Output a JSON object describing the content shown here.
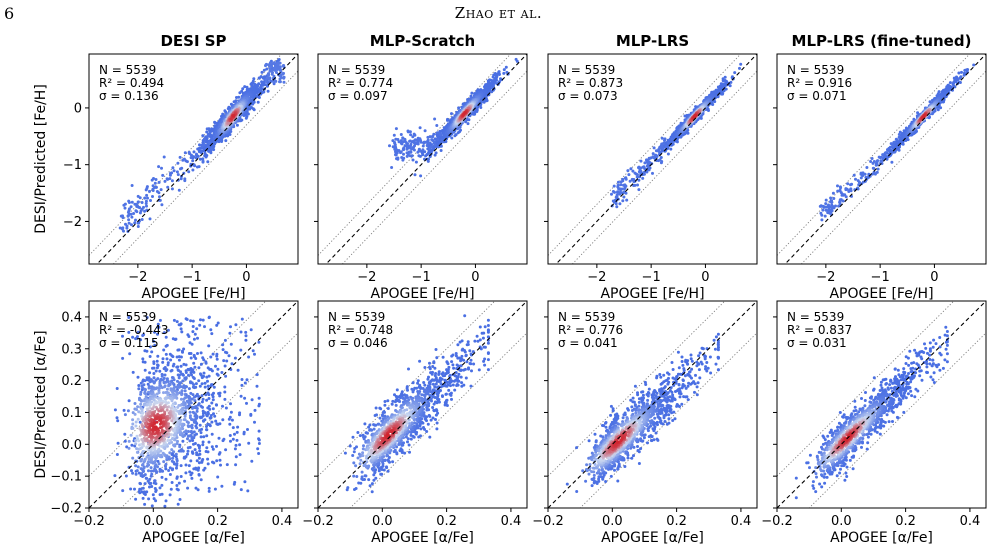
{
  "page": {
    "page_number": "6",
    "running_head": "Zhao et al."
  },
  "chart_data": [
    {
      "type": "scatter",
      "title": "DESI SP",
      "xlabel": "APOGEE [Fe/H]",
      "ylabel": "DESI/Predicted [Fe/H]",
      "xlim": [
        -2.9,
        0.95
      ],
      "ylim": [
        -2.75,
        0.95
      ],
      "xticks": [
        -2,
        -1,
        0
      ],
      "yticks": [
        -2,
        -1,
        0
      ],
      "stats": [
        "N = 5539",
        "R² = 0.494",
        "σ = 0.136"
      ],
      "reference_lines": {
        "one_to_one": true,
        "offset": 0.3
      },
      "points": {
        "center": [
          -0.25,
          -0.15
        ],
        "spread_major": 0.32,
        "spread_minor": 0.14,
        "tail_to": [
          -2.3,
          -2.0
        ],
        "plume": [
          [
            0.5,
            0.5
          ],
          [
            0.7,
            0.75
          ],
          [
            0.6,
            0.6
          ]
        ]
      }
    },
    {
      "type": "scatter",
      "title": "MLP-Scratch",
      "xlabel": "APOGEE [Fe/H]",
      "ylabel": "",
      "xlim": [
        -2.9,
        0.95
      ],
      "ylim": [
        -2.75,
        0.95
      ],
      "xticks": [
        -2,
        -1,
        0
      ],
      "yticks": [
        -2,
        -1,
        0
      ],
      "stats": [
        "N = 5539",
        "R² = 0.774",
        "σ = 0.097"
      ],
      "reference_lines": {
        "one_to_one": true,
        "offset": 0.3
      },
      "points": {
        "center": [
          -0.2,
          -0.1
        ],
        "spread_major": 0.3,
        "spread_minor": 0.1,
        "tail_to": [
          -1.5,
          -0.7
        ]
      }
    },
    {
      "type": "scatter",
      "title": "MLP-LRS",
      "xlabel": "APOGEE [Fe/H]",
      "ylabel": "",
      "xlim": [
        -2.9,
        0.95
      ],
      "ylim": [
        -2.75,
        0.95
      ],
      "xticks": [
        -2,
        -1,
        0
      ],
      "yticks": [
        -2,
        -1,
        0
      ],
      "stats": [
        "N = 5539",
        "R² = 0.873",
        "σ = 0.073"
      ],
      "reference_lines": {
        "one_to_one": true,
        "offset": 0.3
      },
      "points": {
        "center": [
          -0.2,
          -0.15
        ],
        "spread_major": 0.3,
        "spread_minor": 0.07,
        "tail_to": [
          -1.7,
          -1.6
        ]
      }
    },
    {
      "type": "scatter",
      "title": "MLP-LRS (fine-tuned)",
      "xlabel": "APOGEE [Fe/H]",
      "ylabel": "",
      "xlim": [
        -2.9,
        0.95
      ],
      "ylim": [
        -2.75,
        0.95
      ],
      "xticks": [
        -2,
        -1,
        0
      ],
      "yticks": [
        -2,
        -1,
        0
      ],
      "stats": [
        "N = 5539",
        "R² = 0.916",
        "σ = 0.071"
      ],
      "reference_lines": {
        "one_to_one": true,
        "offset": 0.3
      },
      "points": {
        "center": [
          -0.2,
          -0.15
        ],
        "spread_major": 0.3,
        "spread_minor": 0.065,
        "tail_to": [
          -2.1,
          -1.9
        ]
      }
    },
    {
      "type": "scatter",
      "title": "",
      "xlabel": "APOGEE [α/Fe]",
      "ylabel": "DESI/Predicted [α/Fe]",
      "xlim": [
        -0.2,
        0.45
      ],
      "ylim": [
        -0.2,
        0.45
      ],
      "xticks": [
        -0.2,
        0.0,
        0.2,
        0.4
      ],
      "yticks": [
        -0.2,
        -0.1,
        0.0,
        0.1,
        0.2,
        0.3,
        0.4
      ],
      "stats": [
        "N = 5539",
        "R² = -0.443",
        "σ = 0.115"
      ],
      "reference_lines": {
        "one_to_one": true,
        "offset": 0.1
      },
      "points": {
        "center": [
          0.01,
          0.06
        ],
        "spread_x": 0.07,
        "spread_y": 0.1,
        "slope": 0.35
      }
    },
    {
      "type": "scatter",
      "title": "",
      "xlabel": "APOGEE [α/Fe]",
      "ylabel": "",
      "xlim": [
        -0.2,
        0.45
      ],
      "ylim": [
        -0.2,
        0.45
      ],
      "xticks": [
        -0.2,
        0.0,
        0.2,
        0.4
      ],
      "yticks": [
        -0.2,
        -0.1,
        0.0,
        0.1,
        0.2,
        0.3,
        0.4
      ],
      "stats": [
        "N = 5539",
        "R² = 0.748",
        "σ = 0.046"
      ],
      "reference_lines": {
        "one_to_one": true,
        "offset": 0.1
      },
      "points": {
        "center": [
          0.02,
          0.03
        ],
        "spread_x": 0.09,
        "spread_y": 0.045,
        "slope": 0.95
      }
    },
    {
      "type": "scatter",
      "title": "",
      "xlabel": "APOGEE [α/Fe]",
      "ylabel": "",
      "xlim": [
        -0.2,
        0.45
      ],
      "ylim": [
        -0.2,
        0.45
      ],
      "xticks": [
        -0.2,
        0.0,
        0.2,
        0.4
      ],
      "yticks": [
        -0.2,
        -0.1,
        0.0,
        0.1,
        0.2,
        0.3,
        0.4
      ],
      "stats": [
        "N = 5539",
        "R² = 0.776",
        "σ = 0.041"
      ],
      "reference_lines": {
        "one_to_one": true,
        "offset": 0.1
      },
      "points": {
        "center": [
          0.02,
          0.01
        ],
        "spread_x": 0.09,
        "spread_y": 0.04,
        "slope": 0.9
      }
    },
    {
      "type": "scatter",
      "title": "",
      "xlabel": "APOGEE [α/Fe]",
      "ylabel": "",
      "xlim": [
        -0.2,
        0.45
      ],
      "ylim": [
        -0.2,
        0.45
      ],
      "xticks": [
        -0.2,
        0.0,
        0.2,
        0.4
      ],
      "yticks": [
        -0.2,
        -0.1,
        0.0,
        0.1,
        0.2,
        0.3,
        0.4
      ],
      "stats": [
        "N = 5539",
        "R² = 0.837",
        "σ = 0.031"
      ],
      "reference_lines": {
        "one_to_one": true,
        "offset": 0.1
      },
      "points": {
        "center": [
          0.02,
          0.02
        ],
        "spread_x": 0.09,
        "spread_y": 0.035,
        "slope": 0.95
      }
    }
  ],
  "colors": {
    "low_density": "#4a6fe3",
    "mid_density": "#c9d7f0",
    "high_density": "#d1242e",
    "reference_line": "#000000",
    "offset_line": "#808080"
  }
}
